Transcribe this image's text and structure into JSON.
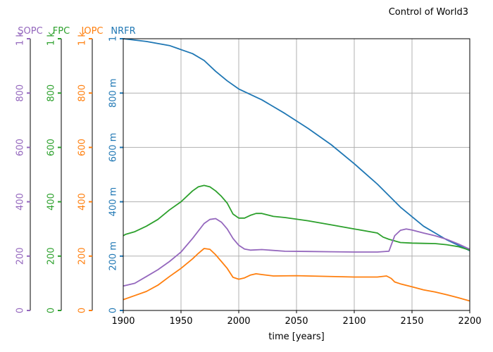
{
  "chart_data": {
    "type": "line",
    "title": "Control of World3",
    "xlabel": "time [years]",
    "xlim": [
      1900,
      2200
    ],
    "x_ticks": [
      1900,
      1950,
      2000,
      2050,
      2100,
      2150,
      2200
    ],
    "x_tick_labels": [
      "1900",
      "1950",
      "2000",
      "2050",
      "2100",
      "2150",
      "2200"
    ],
    "grid": true,
    "series": [
      {
        "name": "NRFR",
        "color": "#1f77b4",
        "ylim": [
          0,
          1
        ],
        "ticks": [
          0,
          0.2,
          0.4,
          0.6,
          0.8,
          1
        ],
        "tick_labels": [
          "0",
          "200 m",
          "400 m",
          "600 m",
          "800 m",
          "1"
        ],
        "x": [
          1900,
          1920,
          1940,
          1960,
          1970,
          1980,
          1990,
          2000,
          2020,
          2040,
          2060,
          2080,
          2100,
          2120,
          2140,
          2160,
          2180,
          2200
        ],
        "y": [
          1.0,
          0.99,
          0.975,
          0.945,
          0.92,
          0.88,
          0.845,
          0.815,
          0.775,
          0.725,
          0.67,
          0.61,
          0.54,
          0.465,
          0.38,
          0.31,
          0.26,
          0.22
        ]
      },
      {
        "name": "FPC",
        "color": "#2ca02c",
        "ylim": [
          0,
          1000
        ],
        "ticks": [
          0,
          200,
          400,
          600,
          800,
          1000
        ],
        "tick_labels": [
          "0",
          "200",
          "400",
          "600",
          "800",
          "1 k"
        ],
        "x": [
          1900,
          1902,
          1910,
          1920,
          1930,
          1940,
          1950,
          1960,
          1965,
          1970,
          1975,
          1980,
          1985,
          1990,
          1995,
          2000,
          2005,
          2010,
          2015,
          2020,
          2030,
          2040,
          2060,
          2080,
          2100,
          2120,
          2125,
          2130,
          2140,
          2150,
          2160,
          2170,
          2180,
          2190,
          2200
        ],
        "y": [
          275,
          280,
          290,
          310,
          335,
          370,
          400,
          440,
          455,
          460,
          455,
          440,
          420,
          395,
          355,
          340,
          340,
          350,
          357,
          357,
          346,
          342,
          330,
          315,
          300,
          285,
          270,
          262,
          250,
          248,
          247,
          246,
          242,
          235,
          222
        ]
      },
      {
        "name": "IOPC",
        "color": "#ff7f0e",
        "ylim": [
          0,
          1000
        ],
        "ticks": [
          0,
          200,
          400,
          600,
          800,
          1000
        ],
        "tick_labels": [
          "0",
          "200",
          "400",
          "600",
          "800",
          "1 k"
        ],
        "x": [
          1900,
          1910,
          1920,
          1930,
          1940,
          1950,
          1960,
          1965,
          1970,
          1975,
          1980,
          1985,
          1990,
          1995,
          2000,
          2005,
          2010,
          2015,
          2020,
          2030,
          2050,
          2070,
          2100,
          2120,
          2128,
          2132,
          2135,
          2140,
          2150,
          2160,
          2170,
          2180,
          2190,
          2200
        ],
        "y": [
          40,
          55,
          70,
          93,
          125,
          155,
          190,
          210,
          228,
          225,
          205,
          180,
          155,
          122,
          115,
          120,
          130,
          135,
          132,
          127,
          128,
          126,
          123,
          123,
          127,
          118,
          105,
          98,
          87,
          76,
          68,
          58,
          47,
          35
        ]
      },
      {
        "name": "SOPC",
        "color": "#9467bd",
        "ylim": [
          0,
          1000
        ],
        "ticks": [
          0,
          200,
          400,
          600,
          800,
          1000
        ],
        "tick_labels": [
          "0",
          "200",
          "400",
          "600",
          "800",
          "1 k"
        ],
        "x": [
          1900,
          1910,
          1920,
          1930,
          1940,
          1950,
          1960,
          1970,
          1975,
          1980,
          1985,
          1990,
          1995,
          2000,
          2005,
          2010,
          2020,
          2040,
          2060,
          2080,
          2100,
          2120,
          2130,
          2135,
          2140,
          2145,
          2150,
          2160,
          2170,
          2180,
          2190,
          2200
        ],
        "y": [
          90,
          100,
          125,
          150,
          180,
          215,
          265,
          320,
          335,
          338,
          325,
          300,
          265,
          240,
          226,
          222,
          224,
          218,
          217,
          216,
          215,
          215,
          218,
          275,
          295,
          300,
          296,
          285,
          275,
          262,
          245,
          225
        ]
      }
    ]
  }
}
